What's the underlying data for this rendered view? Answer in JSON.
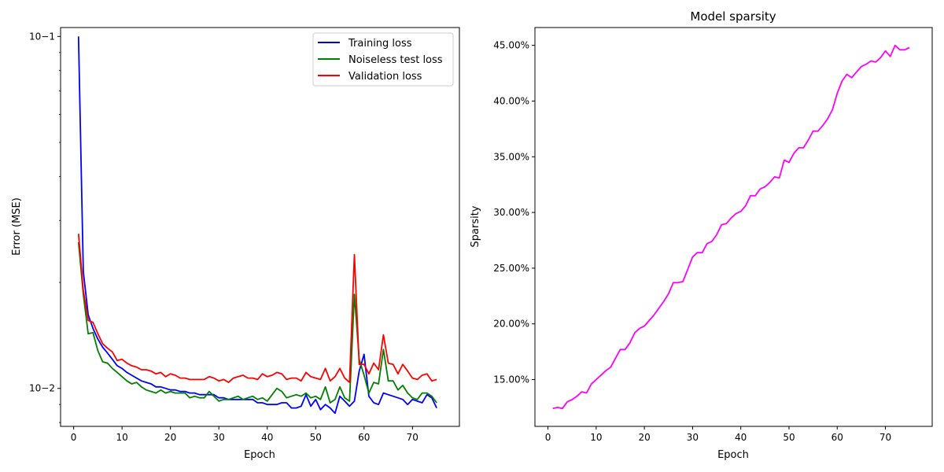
{
  "chart_data": [
    {
      "type": "line",
      "title": "",
      "xlabel": "Epoch",
      "ylabel": "Error (MSE)",
      "yscale": "log",
      "xlim": [
        -2.7,
        79.7
      ],
      "ylim": [
        0.0078,
        0.106
      ],
      "xticks": [
        0,
        10,
        20,
        30,
        40,
        50,
        60,
        70
      ],
      "yticks": [
        {
          "value": 0.1,
          "label": "10−1"
        },
        {
          "value": 0.01,
          "label": "10−2"
        }
      ],
      "legend_position": "top-right",
      "x": [
        1,
        2,
        3,
        4,
        5,
        6,
        7,
        8,
        9,
        10,
        11,
        12,
        13,
        14,
        15,
        16,
        17,
        18,
        19,
        20,
        21,
        22,
        23,
        24,
        25,
        26,
        27,
        28,
        29,
        30,
        31,
        32,
        33,
        34,
        35,
        36,
        37,
        38,
        39,
        40,
        41,
        42,
        43,
        44,
        45,
        46,
        47,
        48,
        49,
        50,
        51,
        52,
        53,
        54,
        55,
        56,
        57,
        58,
        59,
        60,
        61,
        62,
        63,
        64,
        65,
        66,
        67,
        68,
        69,
        70,
        71,
        72,
        73,
        74,
        75
      ],
      "series": [
        {
          "name": "Training loss",
          "color": "#0000ff",
          "values": [
            0.1,
            0.0215,
            0.0162,
            0.0148,
            0.0138,
            0.0131,
            0.0126,
            0.0121,
            0.0116,
            0.0114,
            0.0111,
            0.0109,
            0.0107,
            0.0105,
            0.0104,
            0.0103,
            0.0101,
            0.0101,
            0.01,
            0.0099,
            0.0099,
            0.0098,
            0.0098,
            0.0097,
            0.0097,
            0.0096,
            0.0096,
            0.0096,
            0.0096,
            0.0094,
            0.0094,
            0.0093,
            0.0093,
            0.0093,
            0.0093,
            0.0093,
            0.0093,
            0.0091,
            0.0091,
            0.009,
            0.009,
            0.009,
            0.0091,
            0.0091,
            0.0088,
            0.0088,
            0.0089,
            0.0096,
            0.0089,
            0.0093,
            0.0087,
            0.009,
            0.0088,
            0.0085,
            0.0095,
            0.0092,
            0.0089,
            0.0092,
            0.0112,
            0.0125,
            0.0095,
            0.0091,
            0.009,
            0.0097,
            0.0096,
            0.0095,
            0.0094,
            0.0093,
            0.009,
            0.0093,
            0.0092,
            0.0091,
            0.0096,
            0.0094,
            0.0088
          ]
        },
        {
          "name": "Noiseless test loss",
          "color": "#008000",
          "values": [
            0.026,
            0.0185,
            0.0143,
            0.0144,
            0.0128,
            0.0119,
            0.0118,
            0.0114,
            0.0111,
            0.0108,
            0.0105,
            0.0103,
            0.0104,
            0.0101,
            0.0099,
            0.0098,
            0.0097,
            0.0099,
            0.0097,
            0.0098,
            0.0097,
            0.0097,
            0.0097,
            0.0094,
            0.0095,
            0.0094,
            0.0094,
            0.0098,
            0.0095,
            0.0092,
            0.0093,
            0.0093,
            0.0094,
            0.0095,
            0.0093,
            0.0094,
            0.0095,
            0.0093,
            0.0094,
            0.0092,
            0.0096,
            0.01,
            0.0098,
            0.0094,
            0.0095,
            0.0096,
            0.0095,
            0.0097,
            0.0094,
            0.0095,
            0.0093,
            0.0101,
            0.0091,
            0.0093,
            0.0101,
            0.0094,
            0.0092,
            0.0185,
            0.0121,
            0.0109,
            0.0097,
            0.0104,
            0.0103,
            0.0129,
            0.0105,
            0.0105,
            0.0099,
            0.0102,
            0.0097,
            0.0094,
            0.0093,
            0.0097,
            0.0097,
            0.0095,
            0.0091
          ]
        },
        {
          "name": "Validation loss",
          "color": "#ff0000",
          "values": [
            0.0275,
            0.019,
            0.0156,
            0.0154,
            0.0143,
            0.0134,
            0.013,
            0.0127,
            0.012,
            0.0121,
            0.0118,
            0.0116,
            0.0115,
            0.0113,
            0.0113,
            0.0112,
            0.011,
            0.0111,
            0.0108,
            0.011,
            0.0109,
            0.0107,
            0.0107,
            0.0106,
            0.0106,
            0.0106,
            0.0106,
            0.0108,
            0.0107,
            0.0105,
            0.0106,
            0.0104,
            0.0107,
            0.0108,
            0.0109,
            0.0107,
            0.0107,
            0.0106,
            0.011,
            0.0108,
            0.0109,
            0.0111,
            0.011,
            0.0106,
            0.0107,
            0.0107,
            0.0105,
            0.0111,
            0.0108,
            0.0107,
            0.0106,
            0.0114,
            0.0105,
            0.0108,
            0.0114,
            0.0107,
            0.0104,
            0.024,
            0.0117,
            0.0117,
            0.011,
            0.0118,
            0.0113,
            0.0142,
            0.0118,
            0.0117,
            0.011,
            0.0117,
            0.0112,
            0.0107,
            0.0106,
            0.0109,
            0.011,
            0.0105,
            0.0106
          ]
        }
      ]
    },
    {
      "type": "line",
      "title": "Model sparsity",
      "xlabel": "Epoch",
      "ylabel": "Sparsity",
      "yscale": "linear",
      "xlim": [
        -2.7,
        79.7
      ],
      "ylim": [
        0.108,
        0.466
      ],
      "xticks": [
        0,
        10,
        20,
        30,
        40,
        50,
        60,
        70
      ],
      "yticks": [
        {
          "value": 0.15,
          "label": "15.00%"
        },
        {
          "value": 0.2,
          "label": "20.00%"
        },
        {
          "value": 0.25,
          "label": "25.00%"
        },
        {
          "value": 0.3,
          "label": "30.00%"
        },
        {
          "value": 0.35,
          "label": "35.00%"
        },
        {
          "value": 0.4,
          "label": "40.00%"
        },
        {
          "value": 0.45,
          "label": "45.00%"
        }
      ],
      "x": [
        1,
        2,
        3,
        4,
        5,
        6,
        7,
        8,
        9,
        10,
        11,
        12,
        13,
        14,
        15,
        16,
        17,
        18,
        19,
        20,
        21,
        22,
        23,
        24,
        25,
        26,
        27,
        28,
        29,
        30,
        31,
        32,
        33,
        34,
        35,
        36,
        37,
        38,
        39,
        40,
        41,
        42,
        43,
        44,
        45,
        46,
        47,
        48,
        49,
        50,
        51,
        52,
        53,
        54,
        55,
        56,
        57,
        58,
        59,
        60,
        61,
        62,
        63,
        64,
        65,
        66,
        67,
        68,
        69,
        70,
        71,
        72,
        73,
        74,
        75
      ],
      "series": [
        {
          "name": "",
          "color": "#ff00ff",
          "values": [
            0.124,
            0.125,
            0.124,
            0.13,
            0.132,
            0.135,
            0.139,
            0.138,
            0.146,
            0.15,
            0.154,
            0.158,
            0.161,
            0.169,
            0.177,
            0.177,
            0.183,
            0.192,
            0.196,
            0.198,
            0.203,
            0.208,
            0.214,
            0.22,
            0.227,
            0.237,
            0.237,
            0.238,
            0.249,
            0.26,
            0.264,
            0.264,
            0.272,
            0.274,
            0.28,
            0.289,
            0.29,
            0.295,
            0.299,
            0.301,
            0.306,
            0.315,
            0.315,
            0.321,
            0.323,
            0.327,
            0.332,
            0.331,
            0.347,
            0.345,
            0.353,
            0.358,
            0.358,
            0.365,
            0.373,
            0.373,
            0.378,
            0.384,
            0.392,
            0.407,
            0.418,
            0.424,
            0.421,
            0.426,
            0.431,
            0.433,
            0.436,
            0.435,
            0.439,
            0.445,
            0.44,
            0.45,
            0.446,
            0.446,
            0.448
          ]
        }
      ]
    }
  ]
}
